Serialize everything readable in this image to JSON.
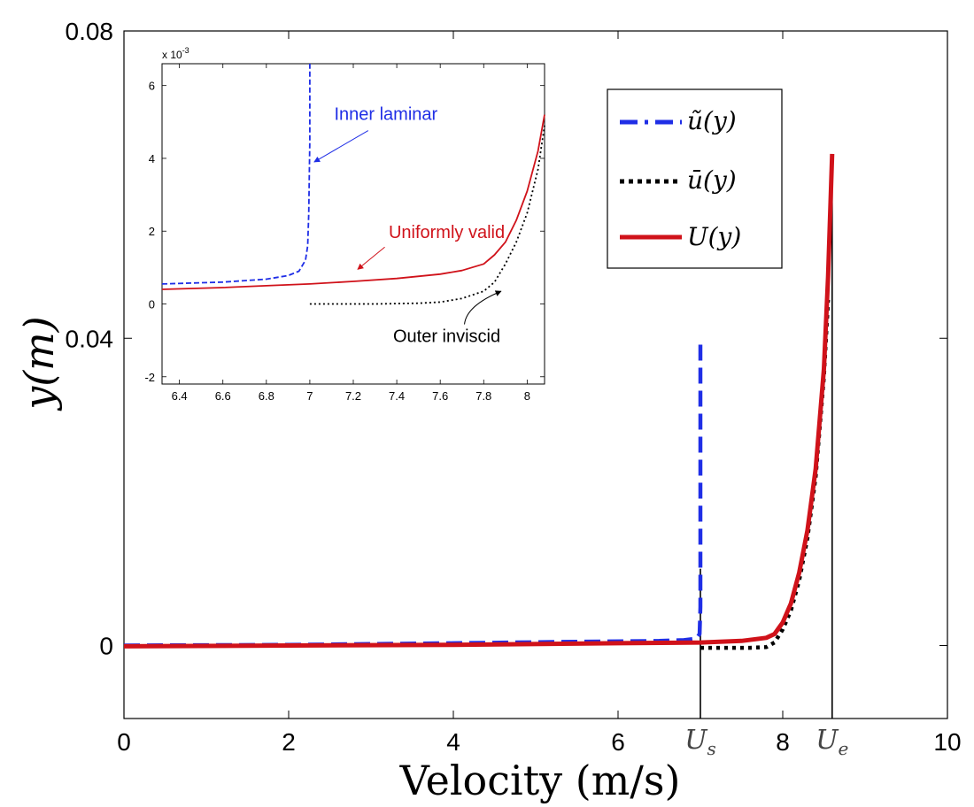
{
  "chart_data": [
    {
      "type": "line",
      "xlabel": "Velocity (m/s)",
      "ylabel": "y(m)",
      "xlim": [
        0,
        10
      ],
      "ylim": [
        -0.0095,
        0.08
      ],
      "xticks": [
        "0",
        "2",
        "4",
        "6",
        "8",
        "10"
      ],
      "yticks": [
        "0",
        "0.04",
        "0.08"
      ],
      "xtick_values": [
        0,
        2,
        4,
        6,
        8,
        10
      ],
      "ytick_values": [
        0,
        0.04,
        0.08
      ],
      "special_xticks": [
        {
          "label": "U",
          "sub": "s",
          "value": 7.0
        },
        {
          "label": "U",
          "sub": "e",
          "value": 8.6
        }
      ],
      "legend": {
        "position": "top-right",
        "entries": [
          {
            "label": "ũ(y)",
            "color": "#1f2ee6",
            "style": "dashed"
          },
          {
            "label": "ū(y)",
            "color": "#000000",
            "style": "dotted"
          },
          {
            "label": "U(y)",
            "color": "#d0121a",
            "style": "solid"
          }
        ]
      },
      "vertical_lines": [
        {
          "x": 7.0,
          "y_range": [
            -0.0095,
            0.01
          ]
        },
        {
          "x": 8.6,
          "y_range": [
            -0.0095,
            0.063
          ]
        }
      ],
      "series": [
        {
          "name": "ũ(y)",
          "color": "#1f2ee6",
          "style": "dashed",
          "x": [
            0,
            2,
            4,
            5.5,
            6.5,
            6.8,
            6.95,
            6.99,
            7.0,
            7.0
          ],
          "y": [
            0.0,
            0.0001,
            0.0003,
            0.0005,
            0.0006,
            0.0007,
            0.0009,
            0.0015,
            0.005,
            0.04
          ]
        },
        {
          "name": "ū(y)",
          "color": "#000000",
          "style": "dotted",
          "x": [
            7.0,
            7.6,
            7.8,
            7.9,
            8.0,
            8.1,
            8.2,
            8.3,
            8.4,
            8.5,
            8.55
          ],
          "y": [
            -0.0003,
            -0.0003,
            -0.0002,
            0.0004,
            0.0021,
            0.0046,
            0.0085,
            0.014,
            0.022,
            0.035,
            0.045
          ]
        },
        {
          "name": "U(y)",
          "color": "#d0121a",
          "style": "solid",
          "x": [
            0,
            2,
            4,
            6,
            7,
            7.5,
            7.8,
            7.9,
            8.0,
            8.1,
            8.2,
            8.3,
            8.4,
            8.5,
            8.55,
            8.6
          ],
          "y": [
            -0.0001,
            0.0,
            0.0001,
            0.0003,
            0.0004,
            0.0006,
            0.001,
            0.0015,
            0.003,
            0.0055,
            0.0095,
            0.015,
            0.023,
            0.036,
            0.048,
            0.064
          ]
        }
      ]
    },
    {
      "type": "line",
      "inset": true,
      "xlim": [
        6.32,
        8.08
      ],
      "ylim": [
        -0.0022,
        0.0066
      ],
      "yscale_label": "x 10",
      "yscale_exponent": "-3",
      "xticks": [
        "6.4",
        "6.6",
        "6.8",
        "7",
        "7.2",
        "7.4",
        "7.6",
        "7.8",
        "8"
      ],
      "yticks": [
        "-2",
        "0",
        "2",
        "4",
        "6"
      ],
      "xtick_values": [
        6.4,
        6.6,
        6.8,
        7.0,
        7.2,
        7.4,
        7.6,
        7.8,
        8.0
      ],
      "ytick_values": [
        -0.002,
        0.0,
        0.002,
        0.004,
        0.006
      ],
      "annotations": [
        {
          "text": "Inner laminar",
          "color": "#1f2ee6",
          "x": 7.35,
          "y": 0.0052,
          "arrow_to": [
            7.02,
            0.0039
          ]
        },
        {
          "text": "Uniformly valid",
          "color": "#d0121a",
          "x": 7.63,
          "y": 0.002,
          "arrow_to": [
            7.22,
            0.00095
          ]
        },
        {
          "text": "Outer inviscid",
          "color": "#000000",
          "x": 7.63,
          "y": -0.0009,
          "arrow_to": [
            7.88,
            0.00035
          ]
        }
      ],
      "series": [
        {
          "name": "ũ(y)",
          "color": "#1f2ee6",
          "style": "dashed",
          "x": [
            6.32,
            6.6,
            6.8,
            6.9,
            6.95,
            6.98,
            6.99,
            6.995,
            7.0,
            7.0
          ],
          "y": [
            0.00055,
            0.0006,
            0.00068,
            0.00078,
            0.0009,
            0.0012,
            0.0016,
            0.0025,
            0.0045,
            0.0066
          ]
        },
        {
          "name": "ū(y)",
          "color": "#000000",
          "style": "dotted",
          "x": [
            7.0,
            7.3,
            7.5,
            7.6,
            7.7,
            7.8,
            7.85,
            7.9,
            7.95,
            8.0,
            8.05,
            8.08
          ],
          "y": [
            0.0,
            0.0,
            2e-05,
            5e-05,
            0.00015,
            0.00035,
            0.0006,
            0.0011,
            0.0017,
            0.0025,
            0.0037,
            0.0049
          ]
        },
        {
          "name": "U(y)",
          "color": "#d0121a",
          "style": "solid",
          "x": [
            6.32,
            6.6,
            6.8,
            7.0,
            7.2,
            7.4,
            7.6,
            7.7,
            7.8,
            7.85,
            7.9,
            7.95,
            8.0,
            8.05,
            8.08
          ],
          "y": [
            0.0004,
            0.00045,
            0.0005,
            0.00055,
            0.00062,
            0.0007,
            0.00082,
            0.00092,
            0.0011,
            0.00135,
            0.0017,
            0.0023,
            0.0031,
            0.0042,
            0.0052
          ]
        }
      ]
    }
  ]
}
